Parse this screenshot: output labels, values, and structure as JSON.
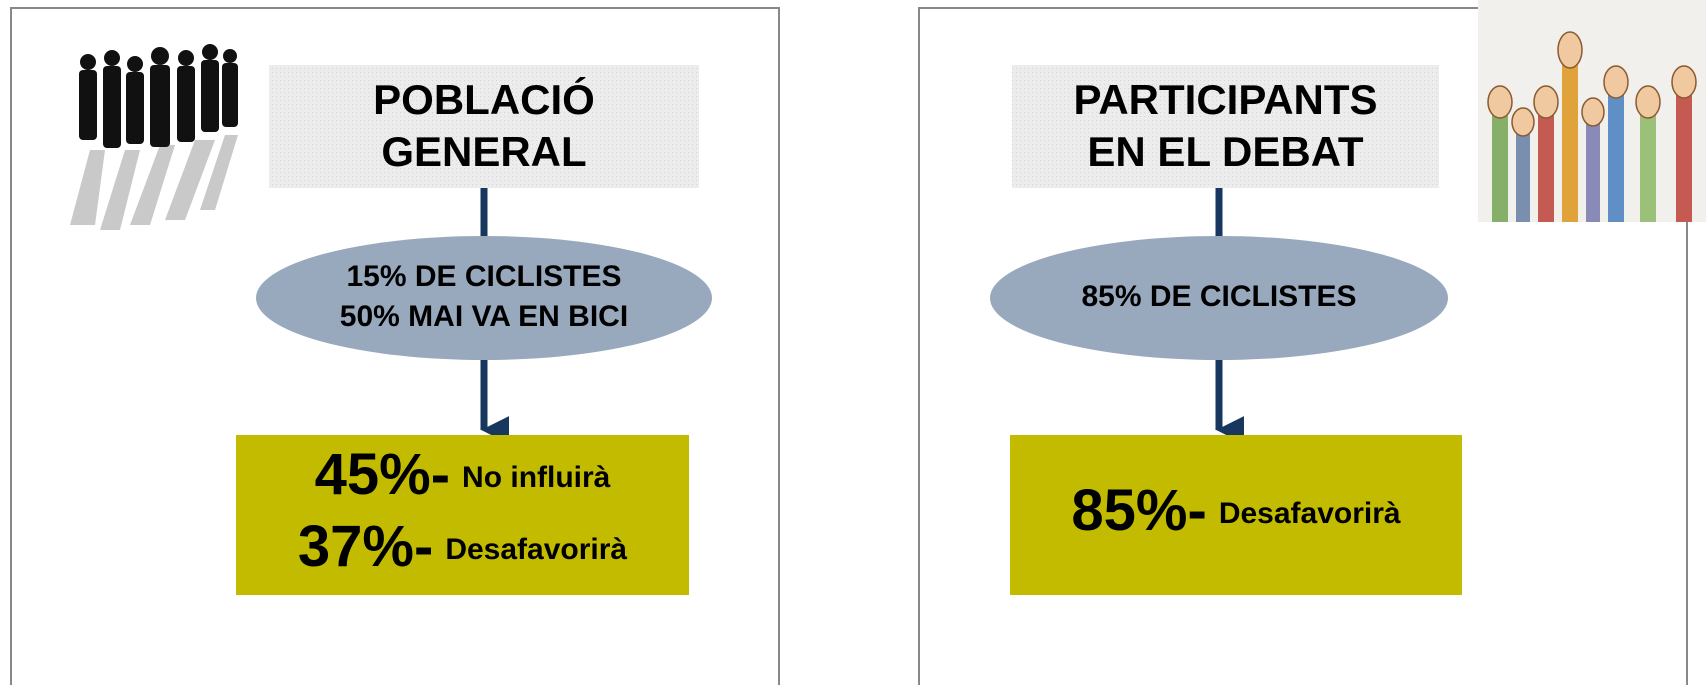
{
  "panels": [
    {
      "title_lines": [
        "POBLACIÓ",
        "GENERAL"
      ],
      "ellipse_lines": [
        "15% DE CICLISTES",
        "50% MAI VA EN BICI"
      ],
      "results": [
        {
          "percent": "45%-",
          "label": "No influirà"
        },
        {
          "percent": "37%-",
          "label": "Desafavorirà"
        }
      ]
    },
    {
      "title_lines": [
        "PARTICIPANTS",
        "EN EL DEBAT"
      ],
      "ellipse_lines": [
        "85% DE CICLISTES"
      ],
      "results": [
        {
          "percent": "85%-",
          "label": "Desafavorirà"
        }
      ]
    }
  ]
}
